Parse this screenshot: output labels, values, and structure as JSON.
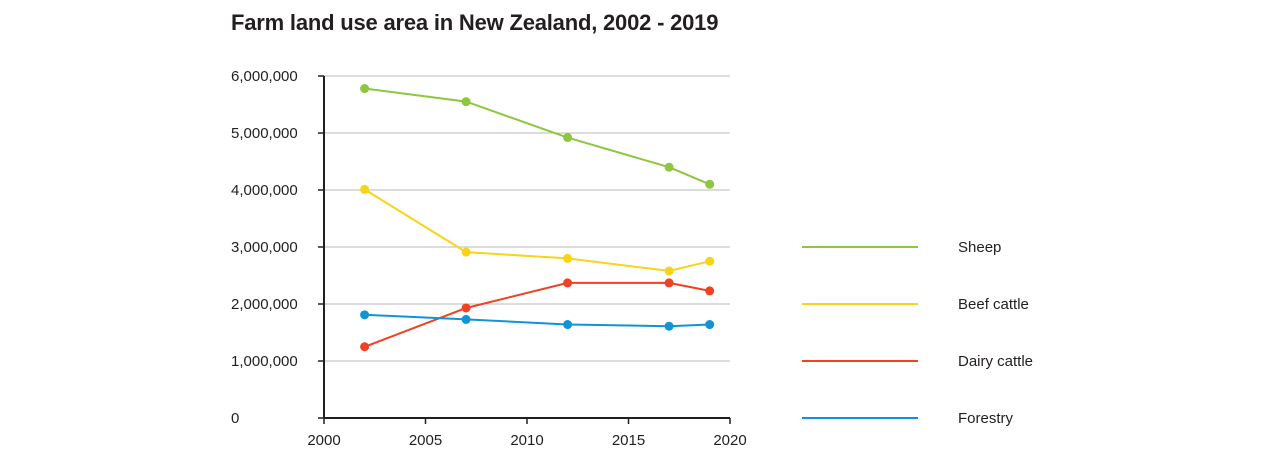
{
  "chart_data": {
    "type": "line",
    "title": "Farm land use area in New Zealand, 2002 - 2019",
    "xlabel": "",
    "ylabel": "",
    "xlim": [
      2000,
      2020
    ],
    "ylim": [
      0,
      6000000
    ],
    "x_ticks": [
      2000,
      2005,
      2010,
      2015,
      2020
    ],
    "x_tick_labels": [
      "2000",
      "2005",
      "2010",
      "2015",
      "2020"
    ],
    "y_ticks": [
      0,
      1000000,
      2000000,
      3000000,
      4000000,
      5000000,
      6000000
    ],
    "y_tick_labels": [
      "0",
      "1,000,000",
      "2,000,000",
      "3,000,000",
      "4,000,000",
      "5,000,000",
      "6,000,000"
    ],
    "grid": "horizontal",
    "legend_position": "right",
    "x": [
      2002,
      2007,
      2012,
      2017,
      2019
    ],
    "series": [
      {
        "name": "Sheep",
        "color": "#8dc63f",
        "values": [
          5780000,
          5550000,
          4920000,
          4400000,
          4100000
        ]
      },
      {
        "name": "Beef cattle",
        "color": "#f7d417",
        "values": [
          4010000,
          2910000,
          2800000,
          2580000,
          2750000
        ]
      },
      {
        "name": "Dairy cattle",
        "color": "#ef4123",
        "values": [
          1250000,
          1930000,
          2370000,
          2370000,
          2230000
        ]
      },
      {
        "name": "Forestry",
        "color": "#0f95d6",
        "values": [
          1810000,
          1730000,
          1640000,
          1610000,
          1640000
        ]
      }
    ]
  }
}
